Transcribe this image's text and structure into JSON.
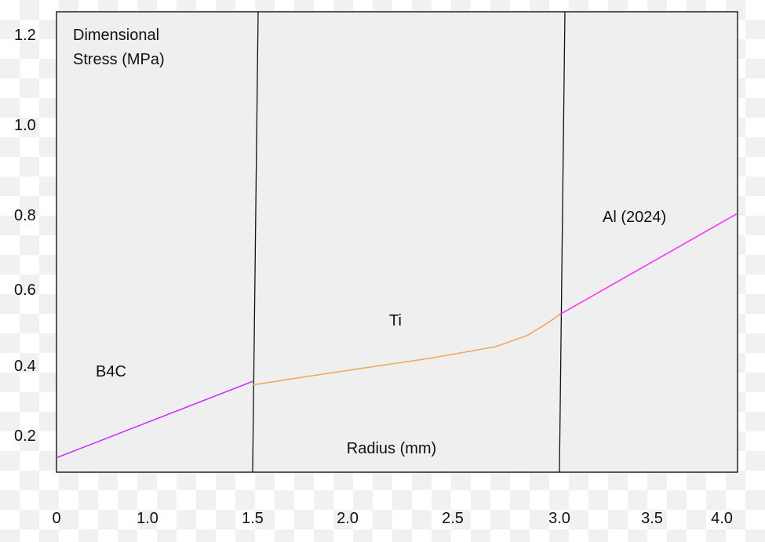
{
  "chart_data": {
    "type": "line",
    "title": "",
    "ylabel_lines": [
      "Dimensional",
      "Stress (MPa)"
    ],
    "xlabel": "Radius (mm)",
    "x_ticks": [
      "0",
      "1.0",
      "1.5",
      "2.0",
      "2.5",
      "3.0",
      "3.5",
      "4.0"
    ],
    "y_ticks": [
      "0.2",
      "0.4",
      "0.6",
      "0.8",
      "1.0",
      "1.2"
    ],
    "grid": false,
    "legend": "none",
    "boundaries": [
      1.5,
      3.0
    ],
    "regions": [
      {
        "label": "B4C"
      },
      {
        "label": "Ti"
      },
      {
        "label": "Al (2024)"
      }
    ],
    "series": [
      {
        "color": "#cc33ff",
        "x": [
          0,
          1.5
        ],
        "y": [
          0.14,
          0.355
        ]
      },
      {
        "color": "#f0a860",
        "x": [
          1.5,
          1.8,
          2.1,
          2.4,
          2.7,
          2.85,
          2.95,
          3.0
        ],
        "y": [
          0.345,
          0.37,
          0.395,
          0.42,
          0.45,
          0.48,
          0.515,
          0.535
        ]
      },
      {
        "color": "#ff33ff",
        "x": [
          3.0,
          4.0
        ],
        "y": [
          0.535,
          0.805
        ]
      }
    ]
  }
}
